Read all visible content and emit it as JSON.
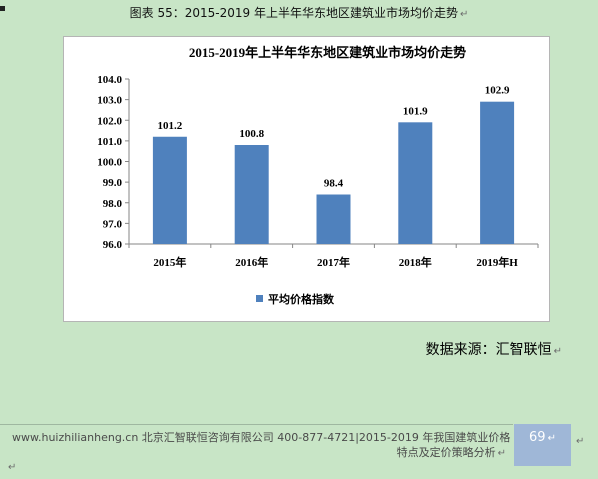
{
  "caption": "图表 55：2015-2019 年上半年华东地区建筑业市场均价走势",
  "source": "数据来源：汇智联恒",
  "footer": {
    "line1": "www.huizhilianheng.cn 北京汇智联恒咨询有限公司 400-877-4721|2015-2019 年我国建筑业价格",
    "line2": "特点及定价策略分析"
  },
  "page_number": "69",
  "marks": {
    "paragraph": "↵"
  },
  "colors": {
    "background": "#c8e5c6",
    "bar": "#4f81bd",
    "page_box": "#9fb7d7"
  },
  "chart_data": {
    "type": "bar",
    "title": "2015-2019年上半年华东地区建筑业市场均价走势",
    "categories": [
      "2015年",
      "2016年",
      "2017年",
      "2018年",
      "2019年H"
    ],
    "series": [
      {
        "name": "平均价格指数",
        "values": [
          101.2,
          100.8,
          98.4,
          101.9,
          102.9
        ]
      }
    ],
    "data_labels": [
      "101.2",
      "100.8",
      "98.4",
      "101.9",
      "102.9"
    ],
    "ylim": [
      96.0,
      104.0
    ],
    "yticks": [
      "96.0",
      "97.0",
      "98.0",
      "99.0",
      "100.0",
      "101.0",
      "102.0",
      "103.0",
      "104.0"
    ],
    "xlabel": "",
    "ylabel": "",
    "grid": false,
    "legend": "bottom"
  }
}
